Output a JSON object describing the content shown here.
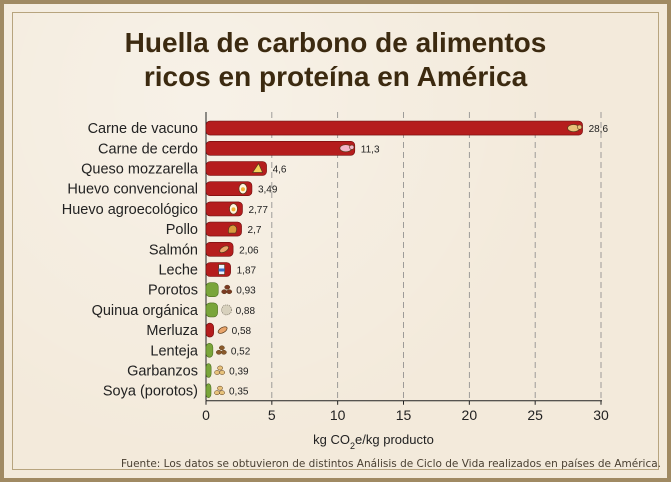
{
  "title_line1": "Huella de carbono de alimentos",
  "title_line2": "ricos en proteína en América",
  "source": "Fuente: Los datos se obtuvieron de distintos Análisis de Ciclo de Vida realizados en países de América.",
  "colors": {
    "animal_bar": "#b51d1d",
    "plant_bar": "#7aa53a",
    "grid": "#888888",
    "text": "#222222"
  },
  "chart_data": {
    "type": "bar",
    "orientation": "horizontal",
    "xlabel": "kg CO2e/kg producto",
    "xlabel_parts": [
      "kg CO",
      "2",
      "e/kg producto"
    ],
    "xlim": [
      0,
      30
    ],
    "xticks": [
      0,
      5,
      10,
      15,
      20,
      25,
      30
    ],
    "grid": "vertical dashed",
    "categories": [
      "Carne de vacuno",
      "Carne de cerdo",
      "Queso mozzarella",
      "Huevo convencional",
      "Huevo agroecológico",
      "Pollo",
      "Salmón",
      "Leche",
      "Porotos",
      "Quinua orgánica",
      "Merluza",
      "Lenteja",
      "Garbanzos",
      "Soya (porotos)"
    ],
    "values": [
      28.6,
      11.3,
      4.6,
      3.49,
      2.77,
      2.7,
      2.06,
      1.87,
      0.93,
      0.88,
      0.58,
      0.52,
      0.39,
      0.35
    ],
    "value_labels": [
      "28,6",
      "11,3",
      "4,6",
      "3,49",
      "2,77",
      "2,7",
      "2,06",
      "1,87",
      "0,93",
      "0,88",
      "0,58",
      "0,52",
      "0,39",
      "0,35"
    ],
    "group": [
      "animal",
      "animal",
      "animal",
      "animal",
      "animal",
      "animal",
      "animal",
      "animal",
      "plant",
      "plant",
      "animal",
      "plant",
      "plant",
      "plant"
    ],
    "icons": [
      "cow-icon",
      "pig-icon",
      "cheese-icon",
      "egg-icon",
      "egg-icon",
      "chicken-icon",
      "fish-icon",
      "milk-icon",
      "bean-icon",
      "quinoa-icon",
      "fish-icon",
      "lentil-icon",
      "chickpea-icon",
      "soy-icon"
    ]
  }
}
